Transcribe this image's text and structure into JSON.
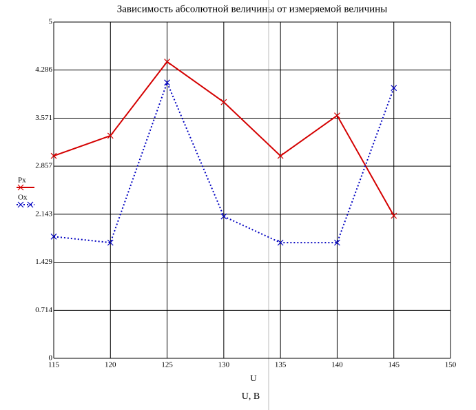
{
  "chart_data": {
    "type": "line",
    "title": "Зависимость абсолютной величины от измеряемой величины",
    "x_label": "U",
    "x_label_2": "U, B",
    "x": [
      115,
      120,
      125,
      130,
      135,
      140,
      145
    ],
    "series": [
      {
        "name": "Px",
        "color": "#d40000",
        "dash": "solid",
        "values": [
          3.01,
          3.31,
          4.41,
          3.81,
          3.01,
          3.61,
          2.12
        ]
      },
      {
        "name": "Ox",
        "color": "#0000c0",
        "dash": "dotted",
        "values": [
          1.81,
          1.72,
          4.1,
          2.11,
          1.72,
          1.72,
          4.02
        ]
      }
    ],
    "xlim": [
      115,
      150
    ],
    "xticks": [
      115,
      120,
      125,
      130,
      135,
      140,
      145,
      150
    ],
    "ylim": [
      0,
      5
    ],
    "yticks": [
      0,
      0.714,
      1.429,
      2.143,
      2.857,
      3.571,
      4.286,
      5
    ],
    "grid": true
  }
}
